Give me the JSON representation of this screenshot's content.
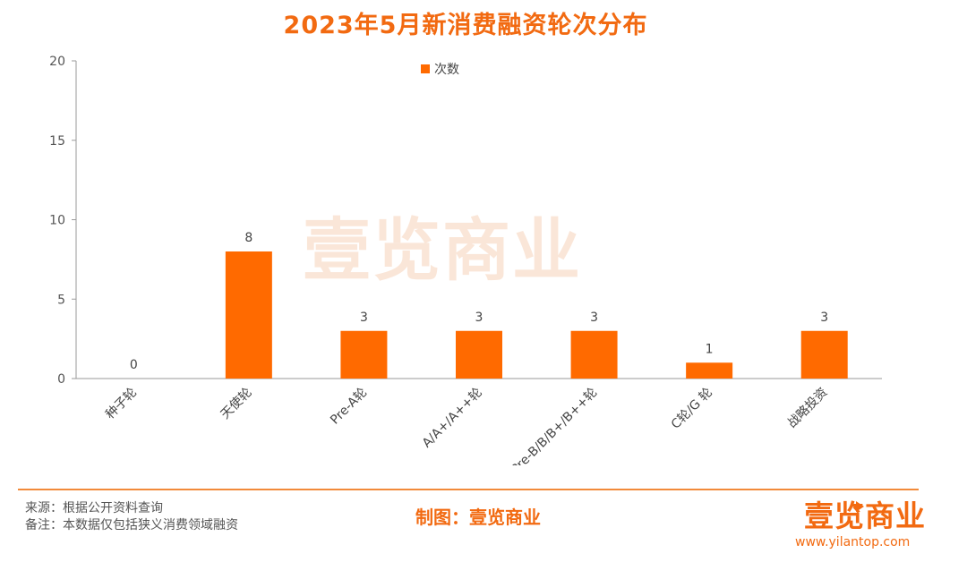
{
  "title": "2023年5月新消费融资轮次分布",
  "watermark": "壹览商业",
  "chart_data": {
    "type": "bar",
    "categories": [
      "种子轮",
      "天使轮",
      "Pre-A轮",
      "A/A+/A++轮",
      "Pre-B/B/B+/B++轮",
      "C轮/G 轮",
      "战略投资"
    ],
    "series": [
      {
        "name": "次数",
        "values": [
          0,
          8,
          3,
          3,
          3,
          1,
          3
        ]
      }
    ],
    "ylim": [
      0,
      20
    ],
    "yticks": [
      0,
      5,
      10,
      15,
      20
    ],
    "grid": false,
    "legend_position": "top-center",
    "data_labels": true,
    "bar_color": "#ff6a00"
  },
  "footer": {
    "source": "来源：根据公开资料查询",
    "note": "备注：本数据仅包括狭义消费领域融资",
    "maker": "制图：壹览商业",
    "brand": "壹览商业",
    "url": "www.yilantop.com"
  },
  "colors": {
    "accent": "#f26a11",
    "bar": "#ff6a00",
    "rule": "#f28a3a"
  }
}
